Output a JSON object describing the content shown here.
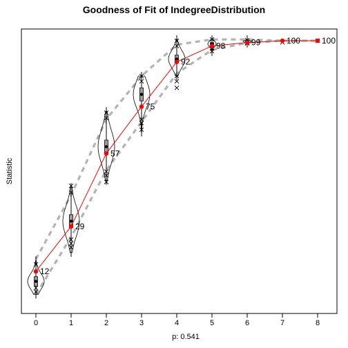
{
  "chart_data": {
    "type": "violin",
    "title": "Goodness of Fit of IndegreeDistribution",
    "xlabel": "p: 0.541",
    "ylabel": "Statistic",
    "x": [
      0,
      1,
      2,
      3,
      4,
      5,
      6,
      7,
      8
    ],
    "x_tick_labels": [
      "0",
      "1",
      "2",
      "3",
      "4",
      "5",
      "6",
      "7",
      "8"
    ],
    "y_ticks_shown": false,
    "ylim": [
      0,
      100
    ],
    "observed": {
      "values": [
        11.8,
        29.0,
        56.9,
        74.8,
        91.9,
        98.0,
        99.3,
        100,
        100
      ],
      "labels": [
        "12",
        "29",
        "57",
        "75",
        "92",
        "98",
        "99",
        "100",
        "100"
      ],
      "color": "#ff0000"
    },
    "simulated": {
      "median": [
        8.0,
        31.0,
        59.5,
        79.5,
        93.0,
        98.8,
        99.8,
        100,
        100
      ],
      "q1": [
        6.2,
        28.5,
        56.5,
        77.0,
        91.5,
        98.3,
        99.7,
        100,
        100
      ],
      "q3": [
        9.8,
        33.5,
        62.0,
        82.0,
        94.5,
        99.3,
        99.95,
        100,
        100
      ],
      "min": [
        3.0,
        19.0,
        46.5,
        65.0,
        86.5,
        95.8,
        99.0,
        100,
        100
      ],
      "max": [
        16.0,
        44.0,
        73.0,
        86.5,
        100.5,
        100.5,
        100.5,
        100,
        100
      ],
      "outliers_low": [
        [
          4.0,
          5.5
        ],
        [
          21.0,
          22.5,
          24.0
        ],
        [
          46.0,
          48.5,
          50.0
        ],
        [
          66.0,
          68.5,
          70.0
        ],
        [
          82.0,
          84.5,
          86.5
        ],
        [
          96.0,
          97.0
        ],
        [
          99.0,
          99.3
        ],
        [
          99.4
        ],
        [
          100
        ]
      ],
      "outliers_high": [
        [
          14.5
        ],
        [
          42.0,
          44.5
        ],
        [
          70.5,
          72.5
        ],
        [
          84.5,
          86.5
        ],
        [
          98.0,
          100.0
        ],
        [
          100.5
        ],
        [
          100.2
        ],
        [],
        []
      ],
      "band_lower": [
        3.0,
        25.0,
        50.5,
        69.0,
        87.5,
        96.5,
        99.2,
        100,
        100
      ],
      "band_upper": [
        16.5,
        41.0,
        70.0,
        86.5,
        98.5,
        100.5,
        100.5,
        100,
        100
      ]
    }
  }
}
